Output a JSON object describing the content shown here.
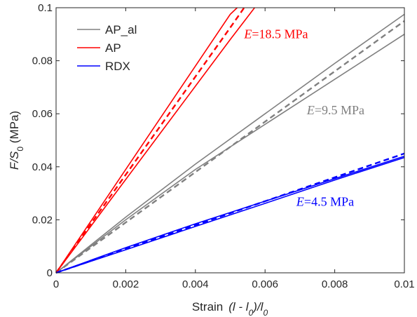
{
  "chart_data": {
    "type": "line",
    "title": "",
    "xlabel": {
      "base": "Strain",
      "expr": "(l - l",
      "sub1": "0",
      "mid": ")/l",
      "sub2": "0"
    },
    "ylabel": {
      "a": "F/S",
      "sub": "0",
      "b": " (MPa)"
    },
    "xlim": [
      0,
      0.01
    ],
    "ylim": [
      0,
      0.1
    ],
    "x_ticks": [
      "0",
      "0.002",
      "0.004",
      "0.006",
      "0.008",
      "0.01"
    ],
    "y_ticks": [
      "0",
      "0.02",
      "0.04",
      "0.06",
      "0.08",
      "0.1"
    ],
    "grid": false,
    "legend_position": "top-left",
    "legend": [
      {
        "name": "AP_al",
        "color": "#808080"
      },
      {
        "name": "AP",
        "color": "#ff0000"
      },
      {
        "name": "RDX",
        "color": "#0000ff"
      }
    ],
    "series": [
      {
        "name": "AP_al",
        "color": "#808080",
        "style": "solid",
        "x": [
          0,
          0.002,
          0.004,
          0.006,
          0.008,
          0.01
        ],
        "y": [
          0,
          0.021,
          0.041,
          0.06,
          0.079,
          0.0975
        ]
      },
      {
        "name": "AP_al",
        "color": "#808080",
        "style": "solid",
        "x": [
          0,
          0.002,
          0.004,
          0.006,
          0.008,
          0.01
        ],
        "y": [
          0,
          0.02,
          0.039,
          0.056,
          0.073,
          0.09
        ]
      },
      {
        "name": "AP_al",
        "color": "#808080",
        "style": "dashed",
        "x": [
          0,
          0.002,
          0.004,
          0.006,
          0.008,
          0.01
        ],
        "y": [
          0,
          0.019,
          0.038,
          0.057,
          0.076,
          0.095
        ]
      },
      {
        "name": "AP",
        "color": "#ff0000",
        "style": "solid",
        "x": [
          0,
          0.001,
          0.002,
          0.003,
          0.004,
          0.005,
          0.0052
        ],
        "y": [
          0,
          0.0195,
          0.039,
          0.0585,
          0.078,
          0.0975,
          0.1
        ]
      },
      {
        "name": "AP",
        "color": "#ff0000",
        "style": "solid",
        "x": [
          0,
          0.001,
          0.002,
          0.003,
          0.004,
          0.005,
          0.0057
        ],
        "y": [
          0,
          0.0176,
          0.0352,
          0.0528,
          0.0704,
          0.088,
          0.1
        ]
      },
      {
        "name": "AP",
        "color": "#ff0000",
        "style": "dashed",
        "x": [
          0,
          0.001,
          0.002,
          0.003,
          0.004,
          0.005,
          0.0054
        ],
        "y": [
          0,
          0.0185,
          0.037,
          0.0555,
          0.074,
          0.0925,
          0.1
        ]
      },
      {
        "name": "RDX",
        "color": "#0000ff",
        "style": "solid",
        "x": [
          0,
          0.002,
          0.004,
          0.006,
          0.008,
          0.01
        ],
        "y": [
          0,
          0.0095,
          0.0185,
          0.027,
          0.0355,
          0.044
        ]
      },
      {
        "name": "RDX",
        "color": "#0000ff",
        "style": "solid",
        "x": [
          0,
          0.002,
          0.004,
          0.006,
          0.008,
          0.01
        ],
        "y": [
          0,
          0.0087,
          0.0175,
          0.0262,
          0.035,
          0.0435
        ]
      },
      {
        "name": "RDX",
        "color": "#0000ff",
        "style": "dashed",
        "x": [
          0,
          0.002,
          0.004,
          0.006,
          0.008,
          0.01
        ],
        "y": [
          0,
          0.009,
          0.018,
          0.027,
          0.036,
          0.045
        ]
      }
    ],
    "annotations": [
      {
        "prefix": "E",
        "text": "=18.5 MPa",
        "color": "#ff0000",
        "x": 0.0054,
        "y": 0.0885
      },
      {
        "prefix": "E",
        "text": "=9.5 MPa",
        "color": "#808080",
        "x": 0.0072,
        "y": 0.0598
      },
      {
        "prefix": "E",
        "text": "=4.5 MPa",
        "color": "#0000ff",
        "x": 0.0069,
        "y": 0.0252
      }
    ]
  }
}
